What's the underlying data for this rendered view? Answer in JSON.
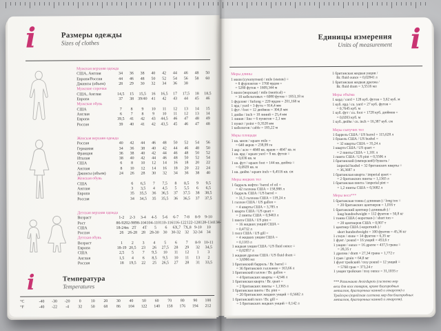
{
  "colors": {
    "accent_pink": "#c93472",
    "header_pink": "#d8549b",
    "page": "#faf9f6",
    "background_gray": "#c3c4c6"
  },
  "ruler": {
    "tick_count": 88
  },
  "left_page": {
    "icon": "i",
    "title": "Размеры одежды",
    "subtitle": "Sizes of clothes",
    "sections": [
      {
        "silhouette": "man",
        "groups": [
          {
            "header": "Мужская верхняя одежда",
            "rows": [
              {
                "label": "США, Англия",
                "values": [
                  "34",
                  "36",
                  "38",
                  "40",
                  "42",
                  "44",
                  "46",
                  "48",
                  "50"
                ]
              },
              {
                "label": "Европа/Россия",
                "values": [
                  "44",
                  "46",
                  "48",
                  "50",
                  "52",
                  "54",
                  "56",
                  "58",
                  "60"
                ]
              },
              {
                "label": "Джинсы (объем)",
                "values": [
                  "28",
                  "29",
                  "30",
                  "32",
                  "34",
                  "36",
                  "38",
                  "",
                  ""
                ]
              }
            ]
          },
          {
            "header": "Мужские сорочки",
            "rows": [
              {
                "label": "США, Англия",
                "values": [
                  "14,5",
                  "15",
                  "15,5",
                  "16",
                  "16,5",
                  "17",
                  "17,5",
                  "18",
                  "18,5"
                ]
              },
              {
                "label": "Европа",
                "values": [
                  "37",
                  "38",
                  "39/40",
                  "41",
                  "42",
                  "43",
                  "44",
                  "45",
                  "46"
                ]
              }
            ]
          },
          {
            "header": "Мужская обувь",
            "rows": [
              {
                "label": "США",
                "values": [
                  "7",
                  "8",
                  "9",
                  "10",
                  "11",
                  "12",
                  "13",
                  "14",
                  "15"
                ]
              },
              {
                "label": "Англия",
                "values": [
                  "6",
                  "7",
                  "8",
                  "9",
                  "10",
                  "11",
                  "12",
                  "13",
                  "14"
                ]
              },
              {
                "label": "Европа",
                "values": [
                  "39,5",
                  "41",
                  "42",
                  "43",
                  "44,5",
                  "46",
                  "47",
                  "48",
                  "49"
                ]
              },
              {
                "label": "Россия",
                "values": [
                  "39",
                  "40",
                  "41",
                  "42",
                  "43,5",
                  "45",
                  "46",
                  "47",
                  "48"
                ]
              }
            ]
          }
        ]
      },
      {
        "silhouette": "woman",
        "groups": [
          {
            "header": "Женская верхняя одежда",
            "rows": [
              {
                "label": "Россия",
                "values": [
                  "40",
                  "42",
                  "44",
                  "46",
                  "48",
                  "50",
                  "52",
                  "54",
                  "56"
                ]
              },
              {
                "label": "Германия",
                "values": [
                  "34",
                  "36",
                  "38",
                  "40",
                  "42",
                  "44",
                  "46",
                  "48",
                  "50"
                ]
              },
              {
                "label": "Франция",
                "values": [
                  "36",
                  "38",
                  "40",
                  "42",
                  "44",
                  "46",
                  "48",
                  "50",
                  "52"
                ]
              },
              {
                "label": "Италия",
                "values": [
                  "38",
                  "40",
                  "42",
                  "44",
                  "46",
                  "48",
                  "50",
                  "52",
                  "54"
                ]
              },
              {
                "label": "США",
                "values": [
                  "6",
                  "8",
                  "10",
                  "12",
                  "14",
                  "16",
                  "18",
                  "20",
                  "22"
                ]
              },
              {
                "label": "Англия",
                "values": [
                  "8",
                  "10",
                  "12",
                  "14",
                  "16",
                  "18",
                  "20",
                  "22",
                  "24"
                ]
              },
              {
                "label": "Джинсы (объем)",
                "values": [
                  "24",
                  "26",
                  "28",
                  "30",
                  "32",
                  "34",
                  "36",
                  "38",
                  "40"
                ]
              }
            ]
          },
          {
            "header": "Женская обувь",
            "rows": [
              {
                "label": "США",
                "values": [
                  "",
                  "6",
                  "6,5",
                  "7",
                  "7,5",
                  "8",
                  "8,5",
                  "9",
                  "9,5"
                ]
              },
              {
                "label": "Англия",
                "values": [
                  "",
                  "3",
                  "3,5",
                  "4",
                  "4,5",
                  "5",
                  "5,5",
                  "6",
                  "6,5"
                ]
              },
              {
                "label": "Европа",
                "values": [
                  "",
                  "35",
                  "35,5",
                  "36",
                  "36,5",
                  "37",
                  "37,5",
                  "38",
                  "38,5"
                ]
              },
              {
                "label": "Россия",
                "values": [
                  "",
                  "34",
                  "34,5",
                  "35",
                  "35,5",
                  "36",
                  "36,5",
                  "37",
                  "37,5"
                ]
              }
            ]
          }
        ]
      },
      {
        "silhouette": "children",
        "groups": [
          {
            "header": "Детская верхняя одежда",
            "rows": [
              {
                "label": "Возраст",
                "values": [
                  "1-2",
                  "2-3",
                  "3-4",
                  "4-5",
                  "5-6",
                  "6-7",
                  "7-8",
                  "8-9",
                  "9-10"
                ]
              },
              {
                "label": "Рост",
                "values": [
                  "86-92",
                  "92-98",
                  "98-104",
                  "104-110",
                  "110-116",
                  "116-122",
                  "122-128",
                  "128-134",
                  "134-140"
                ]
              },
              {
                "label": "США",
                "values": [
                  "18-24m",
                  "2T",
                  "4T",
                  "5",
                  "6",
                  "6X,7",
                  "7X,8",
                  "9-10",
                  "10"
                ]
              },
              {
                "label": "Россия",
                "values": [
                  "26",
                  "26-28",
                  "28",
                  "28-30",
                  "30",
                  "30-32",
                  "32",
                  "32-34",
                  "34"
                ]
              }
            ]
          },
          {
            "header": "Детская обувь",
            "rows": [
              {
                "label": "Возраст",
                "values": [
                  "1",
                  "2",
                  "3",
                  "4",
                  "5",
                  "6",
                  "7",
                  "8-9",
                  "10-11"
                ]
              },
              {
                "label": "Европа",
                "values": [
                  "18-19",
                  "20,5",
                  "23",
                  "26",
                  "27,5",
                  "28",
                  "29",
                  "32",
                  "34,5"
                ]
              },
              {
                "label": "США",
                "values": [
                  "2,5",
                  "5",
                  "7",
                  "9,5",
                  "10",
                  "11",
                  "12",
                  "1",
                  "3"
                ]
              },
              {
                "label": "Англия",
                "values": [
                  "1,5",
                  "4",
                  "6",
                  "8,5",
                  "9,5",
                  "10",
                  "11",
                  "13",
                  "2"
                ]
              },
              {
                "label": "Россия",
                "values": [
                  "18",
                  "19,5",
                  "22",
                  "25",
                  "26,5",
                  "27",
                  "28",
                  "31",
                  "33,5"
                ]
              }
            ]
          }
        ]
      }
    ],
    "temperature": {
      "icon": "i",
      "title": "Температура",
      "subtitle": "Temperatures",
      "rows": [
        {
          "label": "°C",
          "values": [
            "-40",
            "-30",
            "-20",
            "0",
            "10",
            "20",
            "30",
            "40",
            "50",
            "60",
            "70",
            "80",
            "90",
            "100"
          ]
        },
        {
          "label": "°F",
          "values": [
            "-40",
            "-22",
            "-4",
            "32",
            "50",
            "68",
            "86",
            "104",
            "122",
            "140",
            "158",
            "176",
            "194",
            "212"
          ]
        }
      ]
    }
  },
  "right_page": {
    "icon": "i",
    "title": "Единицы измерения",
    "subtitle": "Units of measurement",
    "left_column": [
      {
        "h": "Меры длины"
      },
      {
        "e": [
          "1 миля (сухопутная) / mile (statute) =",
          "= 8 фурлонгов = 1760 ярдов =",
          "= 5280 футов = 1609,344 м"
        ]
      },
      {
        "e": [
          "1 миля (морская) / mile (nautical) =",
          "= 10 кабельтовых = 6080 футов = 1853,18 м"
        ]
      },
      {
        "e": [
          "1 фурлонг / furlong = 220 ярдов = 201,168 м"
        ]
      },
      {
        "e": [
          "1 ярд / yard = 3 фута = 914,4 мм"
        ]
      },
      {
        "e": [
          "1 фут / foot = 12 дюймов = 304,8 мм"
        ]
      },
      {
        "e": [
          "1 дюйм / inch = 10 линий = 25,4 мм"
        ]
      },
      {
        "e": [
          "1 линия / line = 6 пунктов = 2,1 мм"
        ]
      },
      {
        "e": [
          "1 пункт / point = 0,3528 мм"
        ]
      },
      {
        "e": [
          "1 кабельтов / cable = 185,22 м"
        ]
      },
      {
        "h": "Меры площади"
      },
      {
        "e": [
          "1 кв. миля / square mile =",
          "= 640 акров = 238,99 га"
        ]
      },
      {
        "e": [
          "1 акр / acre = 4840 кв. ярдов = 4047 кв. м"
        ]
      },
      {
        "e": [
          "1 кв. ярд / square yard = 9 кв. футов =",
          "= 0,836 кв. м"
        ]
      },
      {
        "e": [
          "1 кв. фут / square foot = 144 кв. дюйма =",
          "= 0,0929 кв. м"
        ]
      },
      {
        "e": [
          "1 кв. дюйм / square inch = 6,4516 кв. см"
        ]
      },
      {
        "h": "Меры жидких тел"
      },
      {
        "e": [
          "1 баррель нефти / barrel of oil =",
          "= 42 галлона США = 158,988 л"
        ]
      },
      {
        "e": [
          "1 баррель США / US barrel =",
          "= 31,5 галлона США = 119,24 л"
        ]
      },
      {
        "e": [
          "1 галлон США / US gallon =",
          "= 4 кварты США = 3,785 л"
        ]
      },
      {
        "e": [
          "1 кварта США / US quart =",
          "= 2 пинты США = 0,9463 л"
        ]
      },
      {
        "e": [
          "1 пинта США / US pint =",
          "= 16 жидких унций США =",
          "= 0,4732 л"
        ]
      },
      {
        "e": [
          "1 гилл США / US gill =",
          "= 4 жидких унции США =",
          "= 0,1183 л"
        ]
      },
      {
        "e": [
          "1 жидкая унция США / US fluid ounce =",
          "= 0,02957 л"
        ]
      },
      {
        "e": [
          "1 жидкая драхма США / US fluid dram =",
          "= 3,6966 мл"
        ]
      },
      {
        "e": [
          "1 британский баррель / Br. barrel =",
          "= 36 британских галлонов = 163,66 л"
        ]
      },
      {
        "e": [
          "1 британский галлон / Br. gallon =",
          "= 4 британских кварты = 4,546 л"
        ]
      },
      {
        "e": [
          "1 британская кварта / Br. quart =",
          "= 2 британских пинты = 1,1365 л"
        ]
      },
      {
        "e": [
          "1 британская пинта / Br. pint =",
          "= 20 британских жидких унций = 0,5682 л"
        ]
      },
      {
        "e": [
          "1 британский гилл / Br. gill =",
          "= 5 британских жидких унций = 0,142 л"
        ]
      }
    ],
    "right_column": [
      {
        "e": [
          "1 британская жидкая унция /",
          "Br. fluid ounce = 0,02841 л"
        ]
      },
      {
        "e": [
          "1 британская жидкая драхма /",
          "Br. fluid dram = 3,5516 мл"
        ]
      },
      {
        "h": "Меры объёма"
      },
      {
        "e": [
          "1 корд / cord = 128 куб. футов = 3,62 куб. м"
        ]
      },
      {
        "e": [
          "1 куб. ярд / cu. yard = 27 куб. футов =",
          "= 0,7645 куб. м"
        ]
      },
      {
        "e": [
          "1 куб. фут / cu. foot = 1728 куб. дюймов =",
          "= 0,0283 куб. м"
        ]
      },
      {
        "e": [
          "1 куб. дюйм / cu. inch = 16,387 куб. см"
        ]
      },
      {
        "h": "Меры сыпучих тел"
      },
      {
        "e": [
          "1 баррель США / US barrel = 115,628 л"
        ]
      },
      {
        "e": [
          "1 бушель США / US bushel =",
          "= 32 кварты США = 35,24 л"
        ]
      },
      {
        "e": [
          "1 кварта США / US quart =",
          "= 2 пинты США = 1,101 л"
        ]
      },
      {
        "e": [
          "1 пинта США / US pint = 0,5506 л"
        ]
      },
      {
        "e": [
          "1 британский (имперский) бушель /",
          "imperial bushel = 32 британских кварты =",
          "= 36,3687 л"
        ]
      },
      {
        "e": [
          "1 британская кварта / imperial quart =",
          "= 2 британских пинты = 1,1365 л"
        ]
      },
      {
        "e": [
          "1 британская пинта / imperial pint =",
          "= 1,2 пинты США = 0,5682 л"
        ]
      },
      {
        "h": "Меры веса***"
      },
      {
        "e": [
          "1 британская тонна (-длинная-) / long ton =",
          "= 20 британских центнеров = 1,016 т"
        ]
      },
      {
        "e": [
          "1 британский центнер (-длинный-) /",
          "long hundredweight = 112 фунтов = 50,8 кг"
        ]
      },
      {
        "e": [
          "1 тонна США (-короткая-) / short ton =",
          "= 20 центнеров США = 0,907 т"
        ]
      },
      {
        "e": [
          "1 центнер США (-короткий-) /",
          "short hundredweight = 100 фунтов = 45,36 кг"
        ]
      },
      {
        "e": [
          "1 стоун / stone = 14 фунтов = 6,35 кг"
        ]
      },
      {
        "e": [
          "1 фунт / pound = 16 унций = 453,6 г"
        ]
      },
      {
        "e": [
          "1 унция / ounce = 16 драхм = 437,5 грана =",
          "= 28,35 г"
        ]
      },
      {
        "e": [
          "1 драхма / dram = 27,34 грана = 1,772 г"
        ]
      },
      {
        "e": [
          "1 гран / grain = 64,8 мг"
        ]
      },
      {
        "e": [
          "1 фунт тройский / troy pound = 12 унций =",
          "= 5760 гран = 373,24 г"
        ]
      },
      {
        "e": [
          "1 унция тройская / troy ounce = 31,1035 г"
        ]
      },
      {
        "note": [
          "*** Различают Avoirdupois (система мер",
          "веса для всех товаров, кроме благородных",
          "металлов, драгоценных камней и лекарств) и",
          "Тройскую (тройская система мер для благородных",
          "металлов, драгоценных камней и лекарств)."
        ]
      }
    ]
  }
}
